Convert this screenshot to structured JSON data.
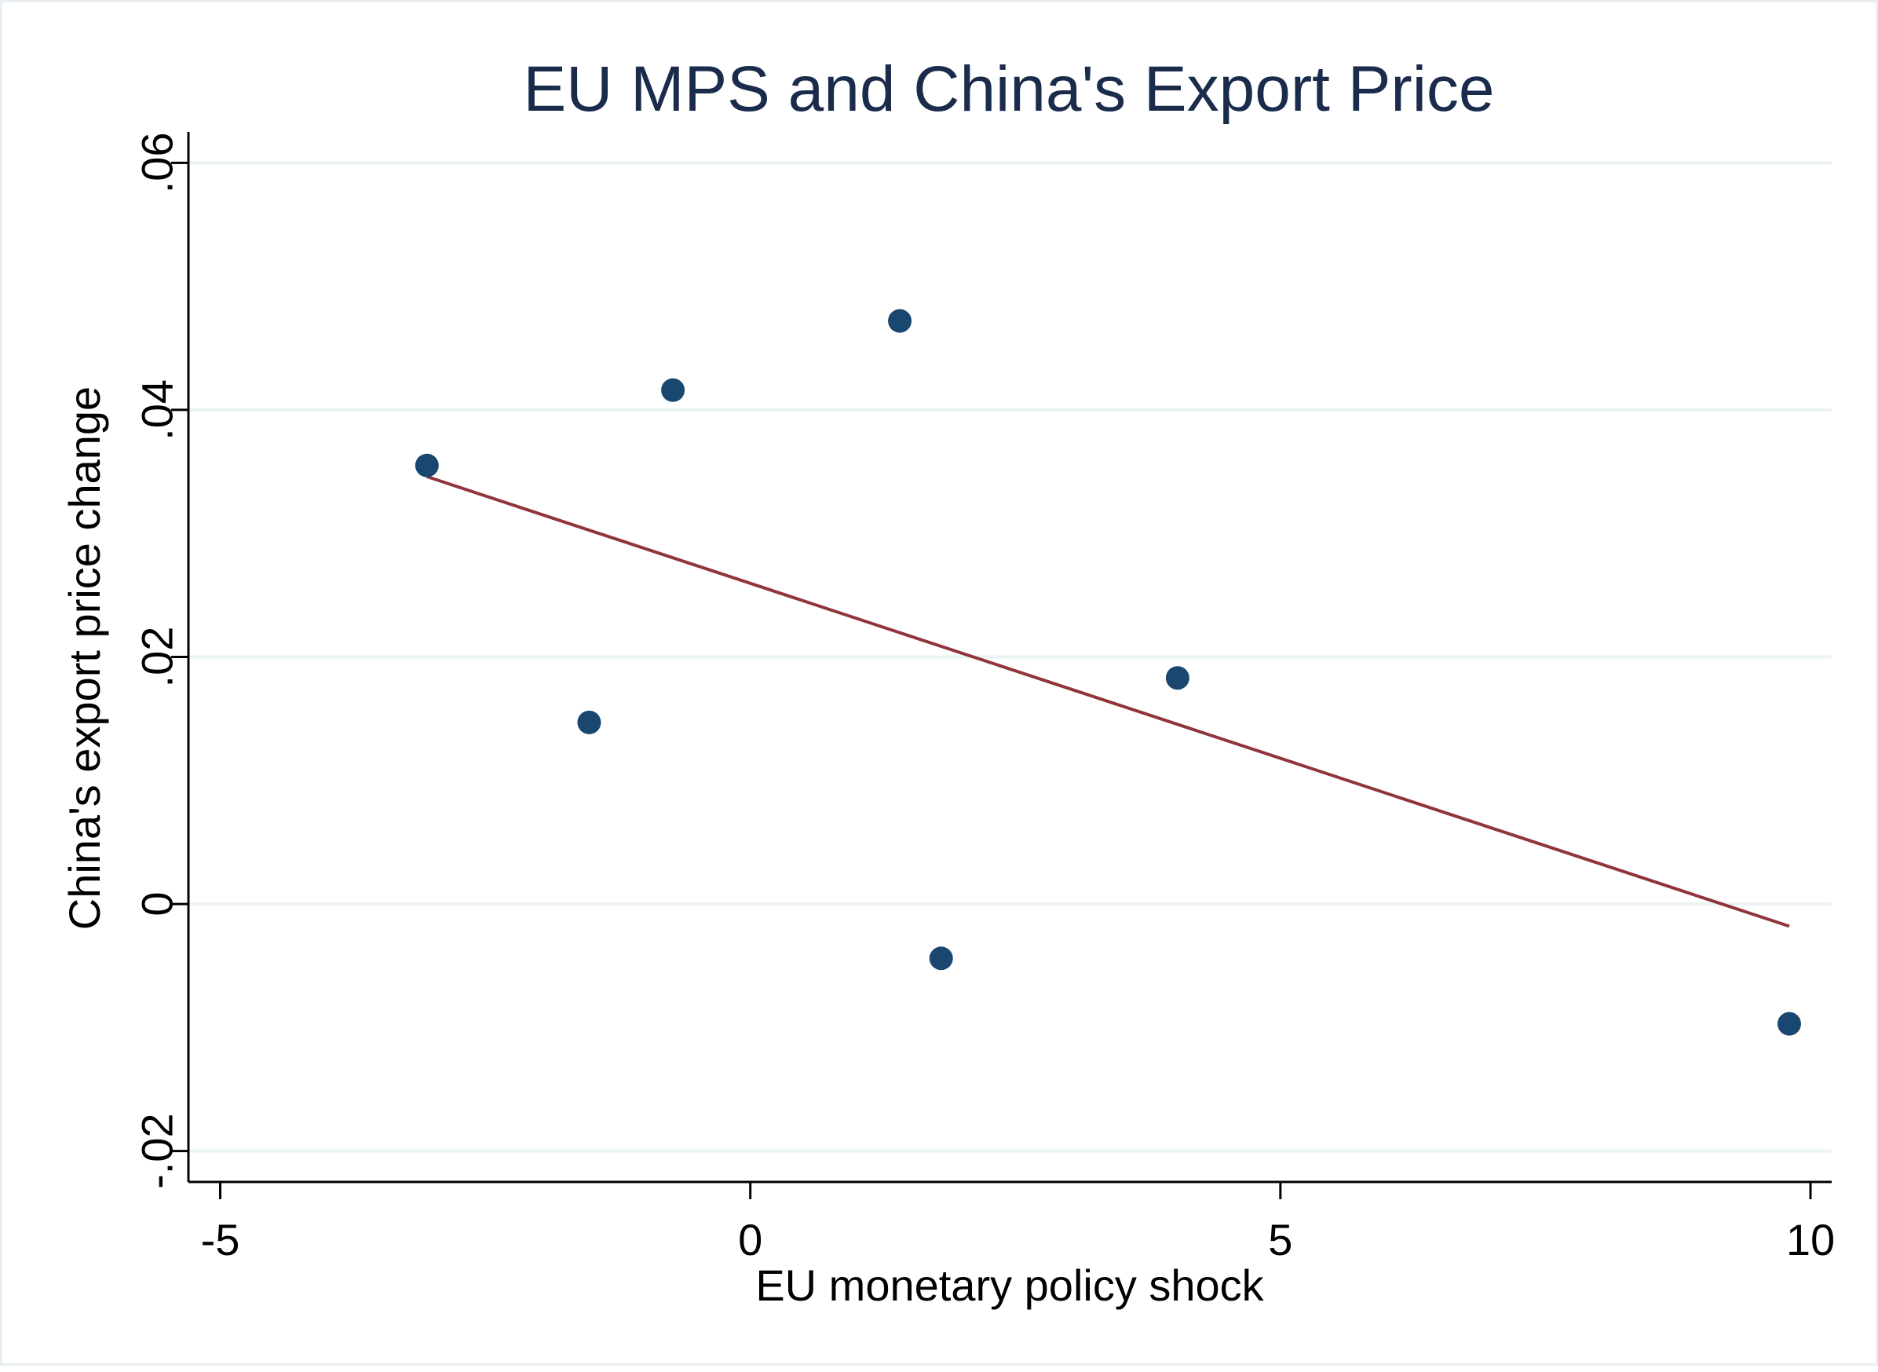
{
  "chart_data": {
    "type": "scatter",
    "title": "EU MPS and China's Export Price",
    "xlabel": "EU monetary policy shock",
    "ylabel": "China's export price change",
    "xlim": [
      -5.3,
      10.2
    ],
    "ylim": [
      -0.0225,
      0.0625
    ],
    "x_ticks": [
      {
        "value": -5,
        "label": "-5"
      },
      {
        "value": 0,
        "label": "0"
      },
      {
        "value": 5,
        "label": "5"
      },
      {
        "value": 10,
        "label": "10"
      }
    ],
    "y_ticks": [
      {
        "value": -0.02,
        "label": "-.02"
      },
      {
        "value": 0,
        "label": "0"
      },
      {
        "value": 0.02,
        "label": ".02"
      },
      {
        "value": 0.04,
        "label": ".04"
      },
      {
        "value": 0.06,
        "label": ".06"
      }
    ],
    "grid": "horizontal",
    "series": [
      {
        "type": "scatter",
        "points": [
          {
            "x": -3.05,
            "y": 0.0355
          },
          {
            "x": -1.52,
            "y": 0.0147
          },
          {
            "x": -0.73,
            "y": 0.0416
          },
          {
            "x": 1.41,
            "y": 0.0472
          },
          {
            "x": 1.8,
            "y": -0.0044
          },
          {
            "x": 4.03,
            "y": 0.0183
          },
          {
            "x": 9.8,
            "y": -0.0097
          }
        ]
      },
      {
        "type": "line",
        "points": [
          {
            "x": -3.05,
            "y": 0.0346
          },
          {
            "x": 9.8,
            "y": -0.0018
          }
        ]
      }
    ],
    "colors": {
      "marker": "#1a476f",
      "fit_line": "#90353b",
      "grid": "#eaf2f3",
      "axis": "#000000",
      "title": "#1a2b4c"
    }
  }
}
